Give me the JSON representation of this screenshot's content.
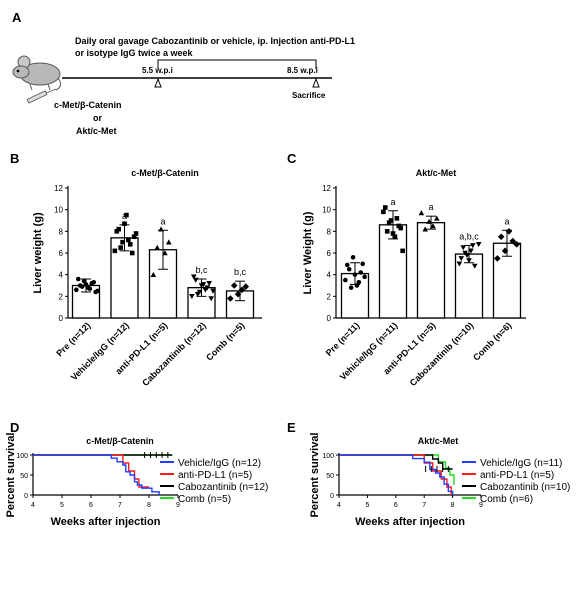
{
  "panels": {
    "A": {
      "letter": "A",
      "line1": "Daily oral gavage Cabozantinib or vehicle, ip. Injection anti-PD-L1",
      "line2": "or isotype IgG twice a week",
      "t1": "5.5 w.p.i",
      "t2": "8.5 w.p.i",
      "sacrifice": "Sacrifice",
      "model1": "c-Met/β-Catenin",
      "or": "or",
      "model2": "Akt/c-Met"
    },
    "B": {
      "letter": "B"
    },
    "C": {
      "letter": "C"
    },
    "D": {
      "letter": "D"
    },
    "E": {
      "letter": "E"
    }
  },
  "chart_data": [
    {
      "id": "B",
      "type": "bar",
      "title": "c-Met/β-Catenin",
      "ylabel": "Liver weight (g)",
      "ylim": [
        0,
        12
      ],
      "yticks": [
        0,
        2,
        4,
        6,
        8,
        10,
        12
      ],
      "categories": [
        "Pre (n=12)",
        "Vehicle/IgG (n=12)",
        "anti-PD-L1 (n=5)",
        "Cabozantinib (n=12)",
        "Comb (n=5)"
      ],
      "values": [
        3.0,
        7.4,
        6.3,
        2.8,
        2.5
      ],
      "errors": [
        0.6,
        1.2,
        1.8,
        0.8,
        0.9
      ],
      "annotations": [
        "",
        "a",
        "a",
        "b,c",
        "b,c"
      ],
      "markers": [
        "circle",
        "square",
        "triangle",
        "triangle-down",
        "diamond"
      ],
      "points": [
        [
          2.6,
          3.0,
          3.4,
          2.8,
          3.2,
          2.4,
          3.6,
          2.9,
          3.1,
          2.7,
          3.3,
          2.5
        ],
        [
          6.2,
          8.2,
          7.0,
          9.5,
          6.8,
          7.5,
          8.0,
          6.5,
          8.7,
          7.2,
          6.0,
          7.8
        ],
        [
          4.0,
          6.5,
          8.2,
          6.0,
          7.0
        ],
        [
          2.0,
          3.5,
          2.4,
          3.1,
          2.8,
          1.8,
          3.8,
          2.2,
          3.0,
          2.6,
          3.2,
          2.5
        ],
        [
          1.8,
          3.0,
          2.2,
          2.6,
          2.9
        ]
      ]
    },
    {
      "id": "C",
      "type": "bar",
      "title": "Akt/c-Met",
      "ylabel": "Liver Weight (g)",
      "ylim": [
        0,
        12
      ],
      "yticks": [
        0,
        2,
        4,
        6,
        8,
        10,
        12
      ],
      "categories": [
        "Pre (n=11)",
        "Vehicle/IgG (n=11)",
        "anti-PD-L1 (n=5)",
        "Cabozantinib (n=10)",
        "Comb (n=6)"
      ],
      "values": [
        4.1,
        8.6,
        8.8,
        5.9,
        6.9
      ],
      "errors": [
        1.0,
        1.3,
        0.6,
        0.8,
        1.2
      ],
      "annotations": [
        "",
        "a",
        "a",
        "a,b,c",
        "a"
      ],
      "markers": [
        "circle",
        "square",
        "triangle",
        "triangle-down",
        "diamond"
      ],
      "points": [
        [
          3.5,
          4.5,
          5.6,
          3.0,
          4.2,
          3.8,
          4.9,
          2.8,
          4.0,
          3.3,
          5.0
        ],
        [
          9.8,
          8.0,
          9.0,
          7.5,
          8.5,
          6.2,
          10.2,
          8.8,
          7.8,
          9.2,
          8.3
        ],
        [
          9.7,
          8.2,
          8.9,
          8.5,
          9.2
        ],
        [
          5.0,
          6.5,
          5.8,
          6.2,
          4.8,
          6.8,
          5.5,
          6.0,
          5.3,
          6.7
        ],
        [
          5.5,
          7.5,
          6.2,
          8.0,
          7.1,
          6.8
        ]
      ]
    },
    {
      "id": "D",
      "type": "line",
      "title": "c-Met/β-Catenin",
      "xlabel": "Weeks after injection",
      "ylabel": "Percent survival",
      "xlim": [
        4,
        9
      ],
      "ylim": [
        0,
        100
      ],
      "xticks": [
        4,
        5,
        6,
        7,
        8,
        9
      ],
      "yticks": [
        0,
        50,
        100
      ],
      "series": [
        {
          "name": "Vehicle/IgG (n=12)",
          "color": "#1f3fff",
          "x": [
            4,
            6.7,
            6.7,
            6.9,
            6.9,
            7.1,
            7.1,
            7.2,
            7.2,
            7.35,
            7.35,
            7.5,
            7.5,
            7.6,
            7.6,
            7.75,
            7.75,
            8.1,
            8.1,
            8.35,
            8.35
          ],
          "y": [
            100,
            100,
            92,
            92,
            83,
            83,
            75,
            75,
            58,
            58,
            50,
            50,
            33,
            33,
            25,
            25,
            17,
            17,
            8,
            8,
            0
          ]
        },
        {
          "name": "anti-PD-L1 (n=5)",
          "color": "#ff1a1a",
          "x": [
            4,
            7.1,
            7.1,
            7.3,
            7.3,
            7.5,
            7.5,
            7.65,
            7.65,
            8.0
          ],
          "y": [
            100,
            100,
            80,
            80,
            60,
            60,
            40,
            40,
            20,
            20
          ]
        },
        {
          "name": "Cabozantinib (n=12)",
          "color": "#000000",
          "x": [
            4,
            8.8
          ],
          "y": [
            100,
            100
          ]
        },
        {
          "name": "Comb (n=5)",
          "color": "#22dd22",
          "x": [
            4,
            8.8
          ],
          "y": [
            100,
            100
          ]
        }
      ]
    },
    {
      "id": "E",
      "type": "line",
      "title": "Akt/c-Met",
      "xlabel": "Weeks after injection",
      "ylabel": "Percent survival",
      "xlim": [
        4,
        9
      ],
      "ylim": [
        0,
        100
      ],
      "xticks": [
        4,
        5,
        6,
        7,
        8,
        9
      ],
      "yticks": [
        0,
        50,
        100
      ],
      "series": [
        {
          "name": "Vehicle/IgG (n=11)",
          "color": "#1f3fff",
          "x": [
            4,
            6.6,
            6.6,
            7.0,
            7.0,
            7.2,
            7.2,
            7.4,
            7.4,
            7.55,
            7.55,
            7.7,
            7.7,
            7.85,
            7.85,
            8.0,
            8.0
          ],
          "y": [
            100,
            100,
            91,
            91,
            82,
            82,
            64,
            64,
            55,
            55,
            45,
            45,
            27,
            27,
            9,
            9,
            0
          ]
        },
        {
          "name": "anti-PD-L1 (n=5)",
          "color": "#ff1a1a",
          "x": [
            4,
            7.0,
            7.0,
            7.3,
            7.3,
            7.6,
            7.6,
            7.8,
            7.8,
            7.95,
            7.95
          ],
          "y": [
            100,
            100,
            80,
            80,
            60,
            60,
            40,
            40,
            20,
            20,
            0
          ]
        },
        {
          "name": "Cabozantinib (n=10)",
          "color": "#000000",
          "x": [
            4,
            7.3,
            7.3,
            7.5,
            7.5,
            7.65,
            7.65,
            8.0
          ],
          "y": [
            100,
            100,
            90,
            90,
            80,
            80,
            65,
            65
          ]
        },
        {
          "name": "Comb (n=6)",
          "color": "#22dd22",
          "x": [
            4,
            7.5,
            7.5,
            7.75,
            7.75,
            7.9,
            7.9,
            8.05,
            8.05
          ],
          "y": [
            100,
            100,
            83,
            83,
            67,
            67,
            50,
            50,
            25
          ]
        }
      ]
    }
  ]
}
